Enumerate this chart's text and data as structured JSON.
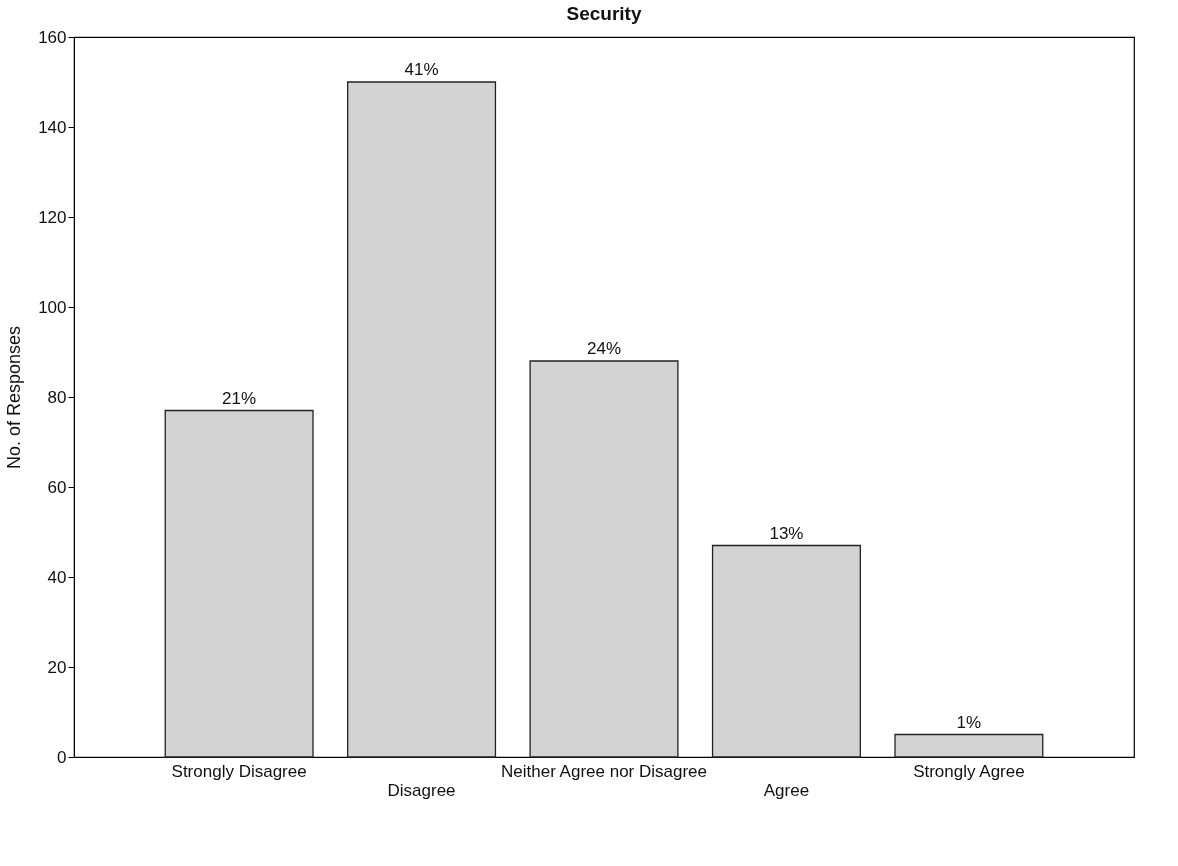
{
  "chart_data": {
    "type": "bar",
    "title": "Security",
    "ylabel": "No. of Responses",
    "categories": [
      "Strongly Disagree",
      "Disagree",
      "Neither Agree nor Disagree",
      "Agree",
      "Strongly Agree"
    ],
    "values": [
      77,
      150,
      88,
      47,
      5
    ],
    "annotations": [
      {
        "text": "21%",
        "x": "Strongly Disagree",
        "y": 77
      },
      {
        "text": "41%",
        "x": "Disagree",
        "y": 150
      },
      {
        "text": "24%",
        "x": "Neither Agree nor Disagree",
        "y": 88
      },
      {
        "text": "13%",
        "x": "Agree",
        "y": 47
      },
      {
        "text": "1%",
        "x": "Strongly Agree",
        "y": 5
      }
    ],
    "color": "#d3d3d3",
    "ylim": [
      0,
      160
    ],
    "yticks": [
      0,
      20,
      40,
      60,
      80,
      100,
      120,
      140,
      160
    ],
    "grid": false
  }
}
